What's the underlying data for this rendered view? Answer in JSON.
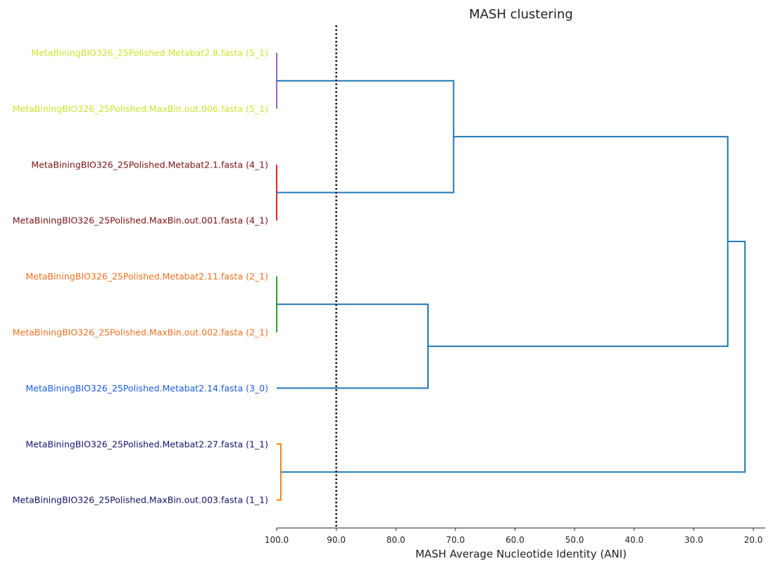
{
  "chart_data": {
    "type": "dendrogram",
    "title": "MASH clustering",
    "xlabel": "MASH Average Nucleotide Identity (ANI)",
    "xlim": [
      100.0,
      18.0
    ],
    "x_ticks": [
      "100.0",
      "90.0",
      "80.0",
      "70.0",
      "60.0",
      "50.0",
      "40.0",
      "30.0",
      "20.0"
    ],
    "threshold_ani": 90.0,
    "leaves": [
      {
        "label": "MetaBiningBIO326_25Polished.Metabat2.8.fasta (5_1)",
        "color": "#c8e62e"
      },
      {
        "label": "MetaBiningBIO326_25Polished.MaxBin.out.006.fasta (5_1)",
        "color": "#c8e62e"
      },
      {
        "label": "MetaBiningBIO326_25Polished.Metabat2.1.fasta (4_1)",
        "color": "#7a1010"
      },
      {
        "label": "MetaBiningBIO326_25Polished.MaxBin.out.001.fasta (4_1)",
        "color": "#7a1010"
      },
      {
        "label": "MetaBiningBIO326_25Polished.Metabat2.11.fasta (2_1)",
        "color": "#f07020"
      },
      {
        "label": "MetaBiningBIO326_25Polished.MaxBin.out.002.fasta (2_1)",
        "color": "#f07020"
      },
      {
        "label": "MetaBiningBIO326_25Polished.Metabat2.14.fasta (3_0)",
        "color": "#1a5ee0"
      },
      {
        "label": "MetaBiningBIO326_25Polished.Metabat2.27.fasta (1_1)",
        "color": "#12126e"
      },
      {
        "label": "MetaBiningBIO326_25Polished.MaxBin.out.003.fasta (1_1)",
        "color": "#12126e"
      }
    ],
    "merges": [
      {
        "id": "m1",
        "children": [
          0,
          1
        ],
        "ani": 100.0,
        "color": "#9467bd"
      },
      {
        "id": "m2",
        "children": [
          2,
          3
        ],
        "ani": 100.0,
        "color": "#d62728"
      },
      {
        "id": "m3",
        "children": [
          4,
          5
        ],
        "ani": 100.0,
        "color": "#2ca02c"
      },
      {
        "id": "m4",
        "children": [
          7,
          8
        ],
        "ani": 99.3,
        "color": "#ff7f0e"
      },
      {
        "id": "m5",
        "children": [
          "m1",
          "m2"
        ],
        "ani": 70.3,
        "color": "#1f77b4"
      },
      {
        "id": "m6",
        "children": [
          "m3",
          6
        ],
        "ani": 74.6,
        "color": "#1f77b4"
      },
      {
        "id": "m7",
        "children": [
          "m5",
          "m6"
        ],
        "ani": 24.3,
        "color": "#1f77b4"
      },
      {
        "id": "m8",
        "children": [
          "m7",
          "m4"
        ],
        "ani": 21.4,
        "color": "#1f77b4"
      }
    ]
  }
}
